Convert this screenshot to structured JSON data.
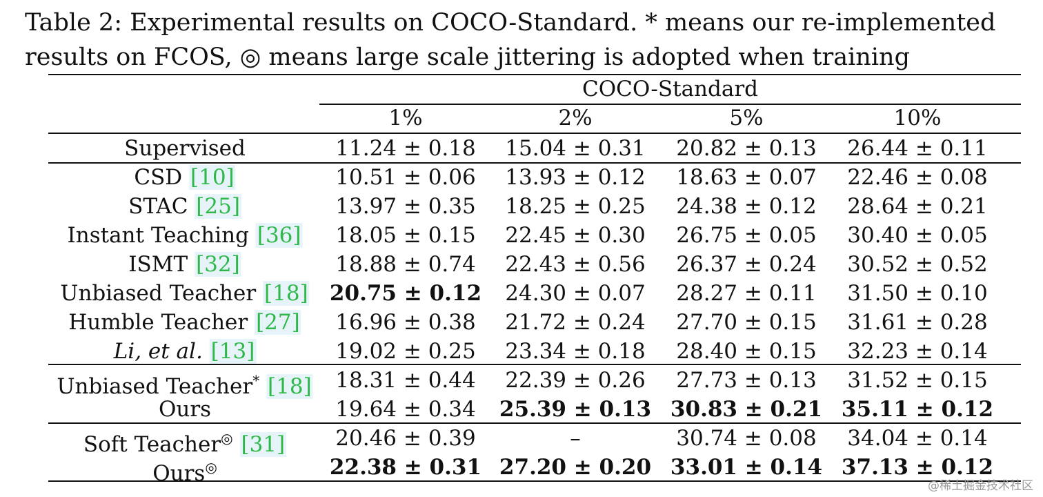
{
  "caption": {
    "line1": "Table 2: Experimental results on COCO-Standard. * means our re-implemented",
    "line2": "results on FCOS, ◎ means large scale jittering is adopted when training"
  },
  "header": {
    "group": "COCO-Standard",
    "columns": [
      "1%",
      "2%",
      "5%",
      "10%"
    ]
  },
  "sections": [
    {
      "rows": [
        {
          "name": "Supervised",
          "italic": false,
          "ref": "",
          "sup": "",
          "values": [
            "11.24 ± 0.18",
            "15.04 ± 0.31",
            "20.82 ± 0.13",
            "26.44 ± 0.11"
          ],
          "bold": [
            false,
            false,
            false,
            false
          ]
        }
      ]
    },
    {
      "rows": [
        {
          "name": "CSD",
          "italic": false,
          "ref": "10",
          "sup": "",
          "values": [
            "10.51 ± 0.06",
            "13.93 ± 0.12",
            "18.63 ± 0.07",
            "22.46 ± 0.08"
          ],
          "bold": [
            false,
            false,
            false,
            false
          ]
        },
        {
          "name": "STAC",
          "italic": false,
          "ref": "25",
          "sup": "",
          "values": [
            "13.97 ± 0.35",
            "18.25 ± 0.25",
            "24.38 ± 0.12",
            "28.64 ± 0.21"
          ],
          "bold": [
            false,
            false,
            false,
            false
          ]
        },
        {
          "name": "Instant Teaching",
          "italic": false,
          "ref": "36",
          "sup": "",
          "values": [
            "18.05 ± 0.15",
            "22.45 ± 0.30",
            "26.75 ± 0.05",
            "30.40 ± 0.05"
          ],
          "bold": [
            false,
            false,
            false,
            false
          ]
        },
        {
          "name": "ISMT",
          "italic": false,
          "ref": "32",
          "sup": "",
          "values": [
            "18.88 ± 0.74",
            "22.43 ± 0.56",
            "26.37 ± 0.24",
            "30.52 ± 0.52"
          ],
          "bold": [
            false,
            false,
            false,
            false
          ]
        },
        {
          "name": "Unbiased Teacher",
          "italic": false,
          "ref": "18",
          "sup": "",
          "values": [
            "20.75 ± 0.12",
            "24.30 ± 0.07",
            "28.27 ± 0.11",
            "31.50 ± 0.10"
          ],
          "bold": [
            true,
            false,
            false,
            false
          ]
        },
        {
          "name": "Humble Teacher",
          "italic": false,
          "ref": "27",
          "sup": "",
          "values": [
            "16.96 ± 0.38",
            "21.72 ± 0.24",
            "27.70 ± 0.15",
            "31.61 ± 0.28"
          ],
          "bold": [
            false,
            false,
            false,
            false
          ]
        },
        {
          "name": "Li, et al.",
          "italic": true,
          "ref": "13",
          "sup": "",
          "values": [
            "19.02 ± 0.25",
            "23.34 ± 0.18",
            "28.40 ± 0.15",
            "32.23 ± 0.14"
          ],
          "bold": [
            false,
            false,
            false,
            false
          ]
        }
      ]
    },
    {
      "rows": [
        {
          "name": "Unbiased Teacher",
          "italic": false,
          "ref": "18",
          "sup": "*",
          "values": [
            "18.31 ± 0.44",
            "22.39 ± 0.26",
            "27.73 ± 0.13",
            "31.52 ± 0.15"
          ],
          "bold": [
            false,
            false,
            false,
            false
          ]
        },
        {
          "name": "Ours",
          "italic": false,
          "ref": "",
          "sup": "",
          "values": [
            "19.64 ± 0.34",
            "25.39 ± 0.13",
            "30.83 ± 0.21",
            "35.11 ± 0.12"
          ],
          "bold": [
            false,
            true,
            true,
            true
          ]
        }
      ]
    },
    {
      "rows": [
        {
          "name": "Soft Teacher",
          "italic": false,
          "ref": "31",
          "sup": "◎",
          "values": [
            "20.46 ± 0.39",
            "–",
            "30.74 ± 0.08",
            "34.04 ± 0.14"
          ],
          "bold": [
            false,
            false,
            false,
            false
          ]
        },
        {
          "name": "Ours",
          "italic": false,
          "ref": "",
          "sup": "◎",
          "values": [
            "22.38 ± 0.31",
            "27.20 ± 0.20",
            "33.01 ± 0.14",
            "37.13 ± 0.12"
          ],
          "bold": [
            true,
            true,
            true,
            true
          ]
        }
      ]
    }
  ],
  "watermark": "@稀土掘金技术社区"
}
